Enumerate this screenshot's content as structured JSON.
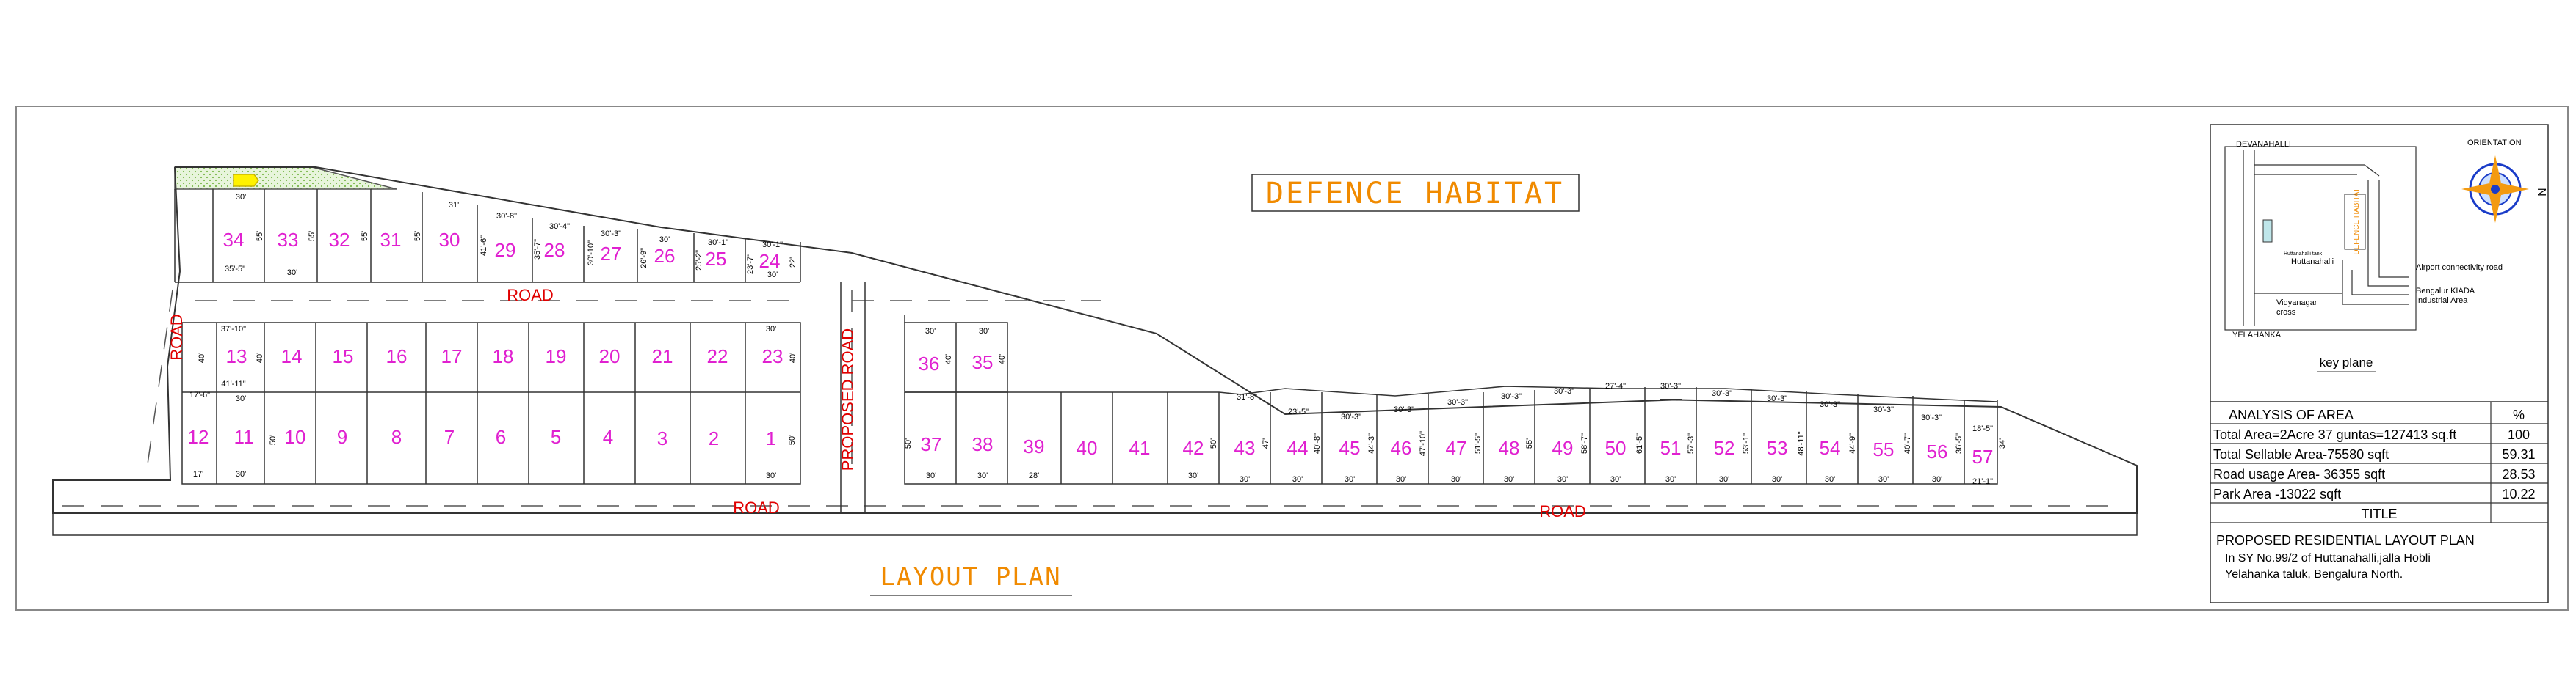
{
  "project_title": "DEFENCE HABITAT",
  "plan_caption": "LAYOUT PLAN",
  "roads": {
    "upper_road": "ROAD",
    "left_road": "ROAD",
    "proposed_road": "PROPOSED ROAD",
    "bottom_road_left": "ROAD",
    "bottom_road_right": "ROAD"
  },
  "plots_top_row": [
    {
      "no": "34",
      "d1": "30'",
      "d2": "35'-5\"",
      "side": "55'"
    },
    {
      "no": "33",
      "d1": "",
      "d2": "30'",
      "side": "55'"
    },
    {
      "no": "32",
      "d1": "",
      "d2": "",
      "side": "55'"
    },
    {
      "no": "31",
      "d1": "",
      "d2": "",
      "side": "55'"
    },
    {
      "no": "30",
      "d1": "31'",
      "d2": "",
      "side": ""
    },
    {
      "no": "29",
      "d1": "30'-8\"",
      "d2": "",
      "side": "41'-6\""
    },
    {
      "no": "28",
      "d1": "30'-4\"",
      "d2": "",
      "side": "35'-7\""
    },
    {
      "no": "27",
      "d1": "30'-3\"",
      "d2": "",
      "side": "30'-10\""
    },
    {
      "no": "26",
      "d1": "30'",
      "d2": "",
      "side": "26'-9\""
    },
    {
      "no": "25",
      "d1": "30'-1\"",
      "d2": "",
      "side": "25'-2\""
    },
    {
      "no": "24",
      "d1": "30'-1\"",
      "d2": "30'",
      "side": "23'-7\""
    }
  ],
  "plots_mid_upper": [
    "13",
    "14",
    "15",
    "16",
    "17",
    "18",
    "19",
    "20",
    "21",
    "22",
    "23"
  ],
  "plots_mid_lower": [
    "12",
    "11",
    "10",
    "9",
    "8",
    "7",
    "6",
    "5",
    "4",
    "3",
    "2",
    "1"
  ],
  "mid_dims": {
    "p13_top": "37'-10\"",
    "p13_bottom": "41'-11\"",
    "p13_side": "40'",
    "p23_top": "30'",
    "p23_side": "40'",
    "p11_top": "30'",
    "p11_bottom": "30'",
    "p12_top": "17'-6\"",
    "p12_bottom": "17'",
    "p10_side": "50'",
    "p1_side": "50'",
    "p1_bottom": "30'",
    "p24_side": "22'"
  },
  "plots_right_upper": [
    "36",
    "35"
  ],
  "right_upper_dims": {
    "top_a": "30'",
    "top_b": "30'",
    "side_a": "40'",
    "side_b": "40'"
  },
  "plots_right_row": [
    {
      "no": "37",
      "top": "",
      "bottom": "30'"
    },
    {
      "no": "38",
      "top": "",
      "bottom": "30'"
    },
    {
      "no": "39",
      "top": "",
      "bottom": "28'"
    },
    {
      "no": "40",
      "top": "",
      "bottom": ""
    },
    {
      "no": "41",
      "top": "",
      "bottom": ""
    },
    {
      "no": "42",
      "top": "",
      "bottom": "30'"
    },
    {
      "no": "43",
      "top": "31'-8\"",
      "bottom": "30'"
    },
    {
      "no": "44",
      "top": "23'-5\"",
      "bottom": "30'"
    },
    {
      "no": "45",
      "top": "30'-3\"",
      "bottom": "30'"
    },
    {
      "no": "46",
      "top": "30'-3\"",
      "bottom": "30'"
    },
    {
      "no": "47",
      "top": "30'-3\"",
      "bottom": "30'"
    },
    {
      "no": "48",
      "top": "30'-3\"",
      "bottom": "30'"
    },
    {
      "no": "49",
      "top": "30'-3\"",
      "bottom": "30'"
    },
    {
      "no": "50",
      "top": "27'-4\"",
      "bottom": "30'"
    },
    {
      "no": "51",
      "top": "30'-3\"",
      "bottom": "30'"
    },
    {
      "no": "52",
      "top": "30'-3\"",
      "bottom": "30'"
    },
    {
      "no": "53",
      "top": "30'-3\"",
      "bottom": "30'"
    },
    {
      "no": "54",
      "top": "30'-3\"",
      "bottom": "30'"
    },
    {
      "no": "55",
      "top": "30'-3\"",
      "bottom": "30'"
    },
    {
      "no": "56",
      "top": "30'-3\"",
      "bottom": "30'"
    },
    {
      "no": "57",
      "top": "18'-5\"",
      "bottom": "21'-1\""
    }
  ],
  "right_row_side_dims": [
    "50'",
    "50'",
    "47'",
    "40'-8\"",
    "44'-3\"",
    "47'-10\"",
    "51'-5\"",
    "55'",
    "58'-7\"",
    "61'-5\"",
    "57'-3\"",
    "53'-1\"",
    "48'-11\"",
    "44'-9\"",
    "40'-7\"",
    "36'-5\"",
    "34'"
  ],
  "key_plane": {
    "devanahalli": "DEVANAHALLI",
    "orientation": "ORIENTATION",
    "north": "N",
    "site_label": "DEFENCE HABITAT",
    "huttanahalli_small": "Huttanahalli tank",
    "huttanahalli": "Huttanahalli",
    "airport_road": "Airport connectivity road",
    "kiada_1": "Bengalur KIADA",
    "kiada_2": "Industrial Area",
    "vidyanagar_1": "Vidyanagar",
    "vidyanagar_2": "cross",
    "yelahanka": "YELAHANKA",
    "caption": "key plane"
  },
  "analysis": {
    "heading": "ANALYSIS OF AREA",
    "pct_heading": "%",
    "rows": [
      {
        "label": "Total Area=2Acre 37 guntas=127413 sq.ft",
        "value": "100"
      },
      {
        "label": "Total Sellable Area-75580 sqft",
        "value": "59.31"
      },
      {
        "label": "Road usage Area- 36355 sqft",
        "value": "28.53"
      },
      {
        "label": "Park Area -13022 sqft",
        "value": "10.22"
      }
    ]
  },
  "title_block": {
    "heading": "TITLE",
    "line1": "PROPOSED RESIDENTIAL LAYOUT PLAN",
    "line2": "In SY No.99/2 of Huttanahalli,jalla Hobli",
    "line3": "Yelahanka taluk, Bengalura North."
  },
  "colors": {
    "plot_number": "#e020d0",
    "road_label": "#e00000",
    "title_orange": "#f08a00",
    "park_green": "#9ad46a"
  }
}
